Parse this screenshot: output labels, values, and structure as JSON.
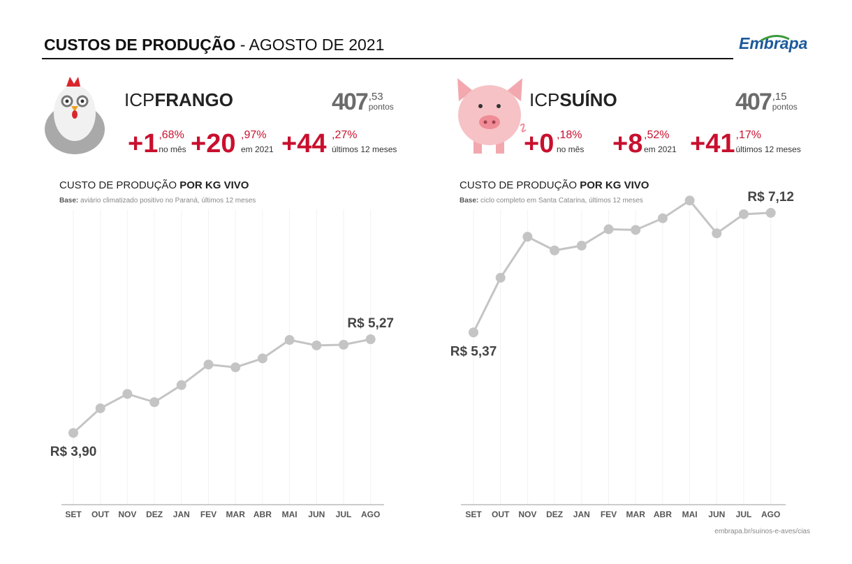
{
  "header": {
    "title_bold": "CUSTOS DE PRODUÇÃO",
    "title_rest": " - AGOSTO DE 2021",
    "logo": "Embrapa"
  },
  "panels": [
    {
      "prefix": "ICP",
      "name": "FRANGO",
      "points_int": "407",
      "points_dec": ",53",
      "points_unit": "pontos",
      "changes": [
        {
          "main": "+1",
          "decimal": ",68%",
          "label": "no mês"
        },
        {
          "main": "+20",
          "decimal": ",97%",
          "label": "em 2021"
        },
        {
          "main": "+44",
          "decimal": ",27%",
          "label": "últimos 12 meses"
        }
      ]
    },
    {
      "prefix": "ICP",
      "name": "SUÍNO",
      "points_int": "407",
      "points_dec": ",15",
      "points_unit": "pontos",
      "changes": [
        {
          "main": "+0",
          "decimal": ",18%",
          "label": "no mês"
        },
        {
          "main": "+8",
          "decimal": ",52%",
          "label": "em 2021"
        },
        {
          "main": "+41",
          "decimal": ",17%",
          "label": "últimos 12 meses"
        }
      ]
    }
  ],
  "chart_data": [
    {
      "type": "line",
      "title": "CUSTO DE PRODUÇÃO ",
      "title_bold": "POR KG VIVO",
      "base_label": "Base:",
      "base_text": " aviário climatizado positivo no Paraná, últimos 12 meses",
      "categories": [
        "SET",
        "OUT",
        "NOV",
        "DEZ",
        "JAN",
        "FEV",
        "MAR",
        "ABR",
        "MAI",
        "JUN",
        "JUL",
        "AGO"
      ],
      "values": [
        3.9,
        4.26,
        4.47,
        4.35,
        4.6,
        4.9,
        4.86,
        4.99,
        5.26,
        5.18,
        5.19,
        5.27
      ],
      "value_labels": [
        "R$ 3,90",
        null,
        null,
        null,
        null,
        null,
        null,
        null,
        null,
        null,
        null,
        "R$ 5,27"
      ],
      "color": "#c4c4c4",
      "ylim": [
        2.85,
        7.17
      ]
    },
    {
      "type": "line",
      "title": "CUSTO DE PRODUÇÃO ",
      "title_bold": "POR KG VIVO",
      "base_label": "Base:",
      "base_text": " ciclo completo em Santa Catarina, últimos 12 meses",
      "categories": [
        "SET",
        "OUT",
        "NOV",
        "DEZ",
        "JAN",
        "FEV",
        "MAR",
        "ABR",
        "MAI",
        "JUN",
        "JUL",
        "AGO"
      ],
      "values": [
        5.37,
        6.17,
        6.77,
        6.57,
        6.64,
        6.88,
        6.87,
        7.04,
        7.3,
        6.82,
        7.1,
        7.12
      ],
      "value_labels": [
        "R$ 5,37",
        null,
        null,
        null,
        null,
        null,
        null,
        null,
        null,
        null,
        null,
        "R$ 7,12"
      ],
      "color": "#c4c4c4",
      "ylim": [
        2.85,
        7.17
      ]
    }
  ],
  "footer": "embrapa.br/suinos-e-aves/cias"
}
